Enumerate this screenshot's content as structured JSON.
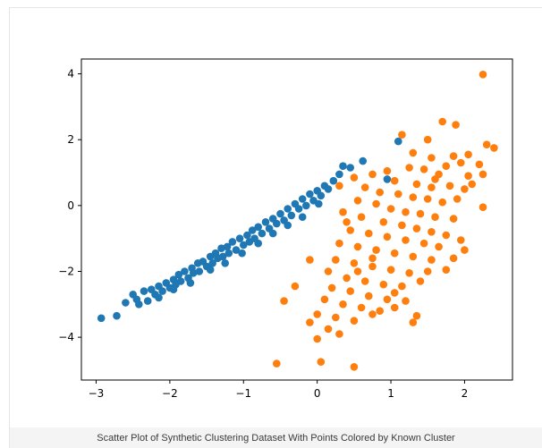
{
  "caption": "Scatter Plot of Synthetic Clustering Dataset With Points Colored by Known Cluster",
  "colors": {
    "series0": "#1f77b4",
    "series1": "#ff7f0e",
    "axes": "#000000"
  },
  "chart_data": {
    "type": "scatter",
    "title": "",
    "xlabel": "",
    "ylabel": "",
    "xlim": [
      -3.2,
      2.65
    ],
    "ylim": [
      -5.3,
      4.45
    ],
    "xticks": [
      -3,
      -2,
      -1,
      0,
      1,
      2
    ],
    "xtick_labels": [
      "−3",
      "−2",
      "−1",
      "0",
      "1",
      "2"
    ],
    "yticks": [
      4,
      2,
      0,
      -2,
      -4
    ],
    "ytick_labels": [
      "4",
      "2",
      "0",
      "−2",
      "−4"
    ],
    "grid": false,
    "legend": "none",
    "series": [
      {
        "color": "#1f77b4",
        "points": [
          [
            -2.93,
            -3.42
          ],
          [
            -2.72,
            -3.35
          ],
          [
            -2.5,
            -2.7
          ],
          [
            -2.45,
            -2.85
          ],
          [
            -2.42,
            -3.0
          ],
          [
            -2.35,
            -2.6
          ],
          [
            -2.3,
            -2.9
          ],
          [
            -2.25,
            -2.55
          ],
          [
            -2.2,
            -2.7
          ],
          [
            -2.15,
            -2.45
          ],
          [
            -2.1,
            -2.6
          ],
          [
            -2.05,
            -2.35
          ],
          [
            -2.0,
            -2.5
          ],
          [
            -1.95,
            -2.25
          ],
          [
            -1.92,
            -2.4
          ],
          [
            -1.88,
            -2.1
          ],
          [
            -1.85,
            -2.3
          ],
          [
            -1.8,
            -2.0
          ],
          [
            -1.75,
            -2.2
          ],
          [
            -1.7,
            -1.9
          ],
          [
            -1.68,
            -2.05
          ],
          [
            -1.62,
            -1.75
          ],
          [
            -1.6,
            -2.0
          ],
          [
            -1.55,
            -1.7
          ],
          [
            -1.5,
            -1.85
          ],
          [
            -1.45,
            -1.55
          ],
          [
            -1.42,
            -1.75
          ],
          [
            -1.38,
            -1.45
          ],
          [
            -1.35,
            -1.6
          ],
          [
            -1.3,
            -1.3
          ],
          [
            -1.28,
            -1.55
          ],
          [
            -1.22,
            -1.25
          ],
          [
            -1.2,
            -1.45
          ],
          [
            -1.15,
            -1.1
          ],
          [
            -1.1,
            -1.35
          ],
          [
            -1.05,
            -1.0
          ],
          [
            -1.0,
            -1.2
          ],
          [
            -0.95,
            -0.9
          ],
          [
            -0.92,
            -1.1
          ],
          [
            -0.88,
            -0.75
          ],
          [
            -0.85,
            -1.0
          ],
          [
            -0.8,
            -0.65
          ],
          [
            -0.75,
            -0.85
          ],
          [
            -0.7,
            -0.5
          ],
          [
            -0.65,
            -0.7
          ],
          [
            -0.6,
            -0.4
          ],
          [
            -0.55,
            -0.55
          ],
          [
            -0.5,
            -0.25
          ],
          [
            -0.45,
            -0.45
          ],
          [
            -0.4,
            -0.1
          ],
          [
            -0.35,
            -0.3
          ],
          [
            -0.3,
            0.05
          ],
          [
            -0.25,
            -0.1
          ],
          [
            -0.2,
            0.2
          ],
          [
            -0.15,
            0.0
          ],
          [
            -0.1,
            0.35
          ],
          [
            -0.05,
            0.15
          ],
          [
            0.0,
            0.45
          ],
          [
            0.05,
            0.3
          ],
          [
            0.1,
            0.6
          ],
          [
            0.15,
            0.5
          ],
          [
            0.22,
            0.75
          ],
          [
            0.3,
            0.95
          ],
          [
            0.35,
            1.2
          ],
          [
            0.45,
            1.15
          ],
          [
            0.62,
            1.35
          ],
          [
            0.95,
            0.8
          ],
          [
            1.1,
            1.95
          ],
          [
            -2.6,
            -2.95
          ],
          [
            -2.15,
            -2.8
          ],
          [
            -1.95,
            -2.55
          ],
          [
            -1.72,
            -2.35
          ],
          [
            -1.45,
            -1.95
          ],
          [
            -1.25,
            -1.75
          ],
          [
            -1.02,
            -1.45
          ],
          [
            -0.8,
            -1.15
          ],
          [
            -0.6,
            -0.85
          ],
          [
            -0.4,
            -0.6
          ],
          [
            -0.2,
            -0.35
          ],
          [
            0.02,
            0.05
          ]
        ]
      },
      {
        "color": "#ff7f0e",
        "points": [
          [
            2.25,
            3.98
          ],
          [
            1.7,
            2.55
          ],
          [
            1.88,
            2.45
          ],
          [
            1.15,
            2.15
          ],
          [
            1.5,
            2.0
          ],
          [
            2.3,
            1.85
          ],
          [
            2.4,
            1.75
          ],
          [
            1.3,
            1.6
          ],
          [
            2.05,
            1.55
          ],
          [
            1.55,
            1.45
          ],
          [
            1.85,
            1.5
          ],
          [
            1.95,
            1.3
          ],
          [
            2.2,
            1.25
          ],
          [
            1.75,
            1.2
          ],
          [
            0.95,
            1.05
          ],
          [
            1.25,
            1.15
          ],
          [
            1.45,
            1.1
          ],
          [
            1.65,
            0.95
          ],
          [
            2.05,
            0.9
          ],
          [
            2.25,
            0.95
          ],
          [
            0.5,
            0.85
          ],
          [
            0.75,
            0.95
          ],
          [
            1.05,
            0.75
          ],
          [
            1.35,
            0.65
          ],
          [
            1.55,
            0.55
          ],
          [
            1.8,
            0.6
          ],
          [
            2.0,
            0.5
          ],
          [
            2.1,
            0.65
          ],
          [
            0.3,
            0.6
          ],
          [
            0.65,
            0.55
          ],
          [
            0.85,
            0.4
          ],
          [
            1.1,
            0.35
          ],
          [
            1.3,
            0.25
          ],
          [
            1.5,
            0.2
          ],
          [
            1.7,
            0.1
          ],
          [
            2.25,
            -0.05
          ],
          [
            0.55,
            0.15
          ],
          [
            0.8,
            0.05
          ],
          [
            1.0,
            -0.1
          ],
          [
            1.2,
            -0.2
          ],
          [
            1.4,
            -0.25
          ],
          [
            1.6,
            -0.35
          ],
          [
            1.85,
            -0.4
          ],
          [
            0.35,
            -0.2
          ],
          [
            0.6,
            -0.35
          ],
          [
            0.9,
            -0.5
          ],
          [
            1.15,
            -0.6
          ],
          [
            1.35,
            -0.7
          ],
          [
            1.55,
            -0.8
          ],
          [
            1.75,
            -0.9
          ],
          [
            0.45,
            -0.75
          ],
          [
            0.7,
            -0.85
          ],
          [
            0.95,
            -0.95
          ],
          [
            1.2,
            -1.05
          ],
          [
            1.45,
            -1.15
          ],
          [
            1.65,
            -1.25
          ],
          [
            1.95,
            -1.05
          ],
          [
            0.3,
            -1.15
          ],
          [
            0.55,
            -1.25
          ],
          [
            0.8,
            -1.35
          ],
          [
            1.05,
            -1.45
          ],
          [
            1.3,
            -1.55
          ],
          [
            1.55,
            -1.65
          ],
          [
            1.85,
            -1.6
          ],
          [
            2.0,
            -1.35
          ],
          [
            0.25,
            -1.65
          ],
          [
            0.5,
            -1.75
          ],
          [
            0.75,
            -1.85
          ],
          [
            1.0,
            -1.95
          ],
          [
            1.25,
            -2.05
          ],
          [
            1.5,
            -2.0
          ],
          [
            1.75,
            -1.95
          ],
          [
            -0.1,
            -1.65
          ],
          [
            0.15,
            -2.0
          ],
          [
            0.4,
            -2.2
          ],
          [
            0.65,
            -2.3
          ],
          [
            0.9,
            -2.4
          ],
          [
            1.15,
            -2.45
          ],
          [
            1.4,
            -2.3
          ],
          [
            0.2,
            -2.5
          ],
          [
            0.45,
            -2.6
          ],
          [
            0.7,
            -2.75
          ],
          [
            0.95,
            -2.85
          ],
          [
            1.2,
            -2.9
          ],
          [
            -0.3,
            -2.45
          ],
          [
            -0.45,
            -2.9
          ],
          [
            0.1,
            -2.85
          ],
          [
            0.35,
            -3.0
          ],
          [
            0.6,
            -3.1
          ],
          [
            0.85,
            -3.2
          ],
          [
            1.05,
            -3.1
          ],
          [
            1.35,
            -3.35
          ],
          [
            0.0,
            -3.3
          ],
          [
            0.25,
            -3.4
          ],
          [
            0.5,
            -3.5
          ],
          [
            0.75,
            -3.3
          ],
          [
            -0.1,
            -3.55
          ],
          [
            0.15,
            -3.75
          ],
          [
            0.0,
            -4.05
          ],
          [
            0.3,
            -3.9
          ],
          [
            1.3,
            -3.55
          ],
          [
            -0.55,
            -4.8
          ],
          [
            0.05,
            -4.75
          ],
          [
            0.5,
            -4.9
          ],
          [
            0.4,
            -0.5
          ],
          [
            1.6,
            0.8
          ],
          [
            1.9,
            0.2
          ],
          [
            0.75,
            -1.6
          ],
          [
            1.05,
            -2.65
          ],
          [
            0.55,
            -2.0
          ]
        ]
      }
    ]
  }
}
